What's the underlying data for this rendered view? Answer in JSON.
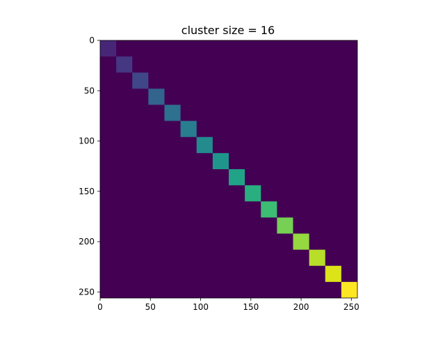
{
  "chart_data": {
    "type": "heatmap",
    "title": "cluster size = 16",
    "xlabel": "",
    "ylabel": "",
    "xlim": [
      0,
      256
    ],
    "ylim": [
      256,
      0
    ],
    "x_ticks": [
      0,
      50,
      100,
      150,
      200,
      250
    ],
    "y_ticks": [
      0,
      50,
      100,
      150,
      200,
      250
    ],
    "grid": false,
    "colormap": "viridis",
    "background_value": 0,
    "block_size": 16,
    "blocks": [
      {
        "start": 0,
        "end": 16,
        "value": 1
      },
      {
        "start": 16,
        "end": 32,
        "value": 2
      },
      {
        "start": 32,
        "end": 48,
        "value": 3
      },
      {
        "start": 48,
        "end": 64,
        "value": 4
      },
      {
        "start": 64,
        "end": 80,
        "value": 5
      },
      {
        "start": 80,
        "end": 96,
        "value": 6
      },
      {
        "start": 96,
        "end": 112,
        "value": 7
      },
      {
        "start": 112,
        "end": 128,
        "value": 8
      },
      {
        "start": 128,
        "end": 144,
        "value": 9
      },
      {
        "start": 144,
        "end": 160,
        "value": 10
      },
      {
        "start": 160,
        "end": 176,
        "value": 11
      },
      {
        "start": 176,
        "end": 192,
        "value": 12
      },
      {
        "start": 192,
        "end": 208,
        "value": 13
      },
      {
        "start": 208,
        "end": 224,
        "value": 14
      },
      {
        "start": 224,
        "end": 240,
        "value": 15
      },
      {
        "start": 240,
        "end": 256,
        "value": 16
      }
    ],
    "colors": {
      "background": "#440154",
      "palette": [
        "#481567",
        "#482677",
        "#453781",
        "#3f4788",
        "#39558c",
        "#32648e",
        "#2d718e",
        "#287d8e",
        "#238a8d",
        "#1f968b",
        "#20a386",
        "#29af7f",
        "#3dbc74",
        "#56c667",
        "#75d054",
        "#95d840",
        "#b8de29",
        "#dce319",
        "#fde725"
      ]
    }
  }
}
